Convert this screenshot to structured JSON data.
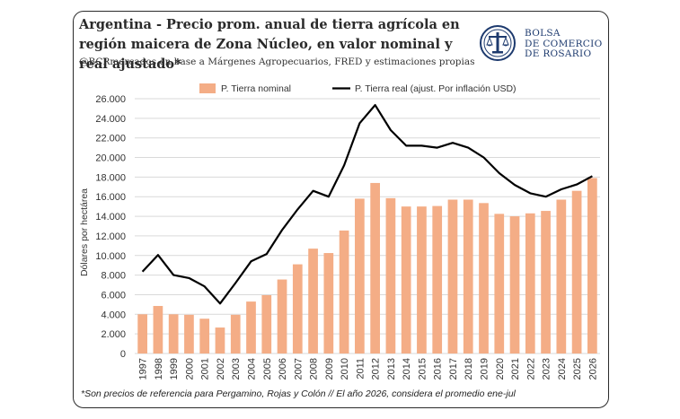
{
  "header": {
    "title": "Argentina - Precio prom. anual de tierra agrícola en región maicera de Zona Núcleo, en valor nominal y real ajustado*",
    "subtitle": "@BCRmercados en base a Márgenes Agropecuarios, FRED y estimaciones propias"
  },
  "logo": {
    "line1": "BOLSA",
    "line2": "DE COMERCIO",
    "line3": "DE ROSARIO",
    "icon": "bcr-emblem-icon",
    "color": "#1d3a6e"
  },
  "footnote": "*Son precios de referencia para Pergamino, Rojas y Colón // El año 2026, considera el promedio ene-jul",
  "chart_data": {
    "type": "bar",
    "categories": [
      "1997",
      "1998",
      "1999",
      "2000",
      "2001",
      "2002",
      "2003",
      "2004",
      "2005",
      "2006",
      "2007",
      "2008",
      "2009",
      "2010",
      "2011",
      "2012",
      "2013",
      "2014",
      "2015",
      "2016",
      "2017",
      "2018",
      "2019",
      "2020",
      "2021",
      "2022",
      "2023",
      "2024",
      "2025",
      "2026"
    ],
    "series": [
      {
        "name": "P. Tierra nominal",
        "type": "bar",
        "color": "#f4ad86",
        "values": [
          4000,
          4850,
          4000,
          3950,
          3550,
          2650,
          3950,
          5300,
          5950,
          7550,
          9100,
          10700,
          10250,
          12550,
          15800,
          17400,
          15850,
          15000,
          15000,
          15050,
          15700,
          15700,
          15350,
          14250,
          14000,
          14300,
          14550,
          15700,
          16600,
          17900
        ]
      },
      {
        "name": "P. Tierra real (ajust. Por inflación USD)",
        "type": "line",
        "color": "#000000",
        "values": [
          8350,
          10050,
          8000,
          7700,
          6850,
          5100,
          7200,
          9400,
          10150,
          12600,
          14700,
          16600,
          16000,
          19200,
          23500,
          25350,
          22800,
          21200,
          21200,
          21000,
          21500,
          21000,
          20000,
          18400,
          17200,
          16350,
          16000,
          16750,
          17250,
          18100
        ]
      }
    ],
    "xlabel": "",
    "ylabel": "Dólares por hectárea",
    "ylim": [
      0,
      26000
    ],
    "yticks": [
      "0",
      "2.000",
      "4.000",
      "6.000",
      "8.000",
      "10.000",
      "12.000",
      "14.000",
      "16.000",
      "18.000",
      "20.000",
      "22.000",
      "24.000",
      "26.000"
    ],
    "grid": true,
    "legend": "top"
  }
}
